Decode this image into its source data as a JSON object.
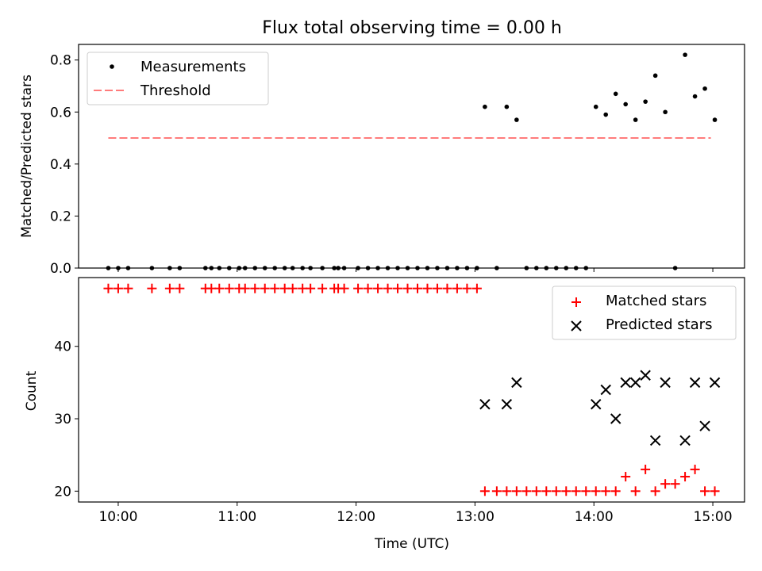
{
  "chart_data": [
    {
      "type": "scatter",
      "title": "Flux total observing time = 0.00 h",
      "xlabel": "",
      "ylabel": "Matched/Predicted stars",
      "xlim": [
        "09:40",
        "15:16"
      ],
      "ylim": [
        0,
        0.86
      ],
      "yticks": [
        "0.0",
        "0.2",
        "0.4",
        "0.6",
        "0.8"
      ],
      "legend_position": "upper-left",
      "series": [
        {
          "name": "Measurements",
          "style": "black dots",
          "points": [
            [
              "09:55",
              0
            ],
            [
              "10:00",
              0
            ],
            [
              "10:05",
              0
            ],
            [
              "10:17",
              0
            ],
            [
              "10:26",
              0
            ],
            [
              "10:31",
              0
            ],
            [
              "10:44",
              0
            ],
            [
              "10:47",
              0
            ],
            [
              "10:51",
              0
            ],
            [
              "10:56",
              0
            ],
            [
              "11:01",
              0
            ],
            [
              "11:04",
              0
            ],
            [
              "11:09",
              0
            ],
            [
              "11:14",
              0
            ],
            [
              "11:19",
              0
            ],
            [
              "11:24",
              0
            ],
            [
              "11:28",
              0
            ],
            [
              "11:33",
              0
            ],
            [
              "11:37",
              0
            ],
            [
              "11:43",
              0
            ],
            [
              "11:49",
              0
            ],
            [
              "11:51",
              0
            ],
            [
              "11:54",
              0
            ],
            [
              "12:01",
              0
            ],
            [
              "12:06",
              0
            ],
            [
              "12:11",
              0
            ],
            [
              "12:16",
              0
            ],
            [
              "12:21",
              0
            ],
            [
              "12:26",
              0
            ],
            [
              "12:31",
              0
            ],
            [
              "12:36",
              0
            ],
            [
              "12:41",
              0
            ],
            [
              "12:46",
              0
            ],
            [
              "12:51",
              0
            ],
            [
              "12:56",
              0
            ],
            [
              "13:01",
              0
            ],
            [
              "13:05",
              0.62
            ],
            [
              "13:11",
              0
            ],
            [
              "13:16",
              0.62
            ],
            [
              "13:21",
              0.57
            ],
            [
              "13:26",
              0
            ],
            [
              "13:31",
              0
            ],
            [
              "13:36",
              0
            ],
            [
              "13:41",
              0
            ],
            [
              "13:46",
              0
            ],
            [
              "13:51",
              0
            ],
            [
              "13:56",
              0
            ],
            [
              "14:01",
              0.62
            ],
            [
              "14:06",
              0.59
            ],
            [
              "14:11",
              0.67
            ],
            [
              "14:16",
              0.63
            ],
            [
              "14:21",
              0.57
            ],
            [
              "14:26",
              0.64
            ],
            [
              "14:31",
              0.74
            ],
            [
              "14:36",
              0.6
            ],
            [
              "14:41",
              0
            ],
            [
              "14:46",
              0.82
            ],
            [
              "14:51",
              0.66
            ],
            [
              "14:56",
              0.69
            ],
            [
              "15:01",
              0.57
            ]
          ]
        },
        {
          "name": "Threshold",
          "style": "dashed salmon line",
          "points": [
            [
              "09:55",
              0.5
            ],
            [
              "14:59",
              0.5
            ]
          ],
          "color": "#ff7b7b"
        }
      ]
    },
    {
      "type": "scatter",
      "title": "",
      "xlabel": "Time (UTC)",
      "ylabel": "Count",
      "xlim": [
        "09:40",
        "15:16"
      ],
      "ylim": [
        18.5,
        49.5
      ],
      "yticks": [
        "20",
        "30",
        "40"
      ],
      "xticks": [
        "10:00",
        "11:00",
        "12:00",
        "13:00",
        "14:00",
        "15:00"
      ],
      "legend_position": "upper-right",
      "series": [
        {
          "name": "Matched stars",
          "marker": "+",
          "color": "#ff0000",
          "points": [
            [
              "09:55",
              48
            ],
            [
              "10:00",
              48
            ],
            [
              "10:05",
              48
            ],
            [
              "10:17",
              48
            ],
            [
              "10:26",
              48
            ],
            [
              "10:31",
              48
            ],
            [
              "10:44",
              48
            ],
            [
              "10:47",
              48
            ],
            [
              "10:51",
              48
            ],
            [
              "10:56",
              48
            ],
            [
              "11:01",
              48
            ],
            [
              "11:04",
              48
            ],
            [
              "11:09",
              48
            ],
            [
              "11:14",
              48
            ],
            [
              "11:19",
              48
            ],
            [
              "11:24",
              48
            ],
            [
              "11:28",
              48
            ],
            [
              "11:33",
              48
            ],
            [
              "11:37",
              48
            ],
            [
              "11:43",
              48
            ],
            [
              "11:49",
              48
            ],
            [
              "11:51",
              48
            ],
            [
              "11:54",
              48
            ],
            [
              "12:01",
              48
            ],
            [
              "12:06",
              48
            ],
            [
              "12:11",
              48
            ],
            [
              "12:16",
              48
            ],
            [
              "12:21",
              48
            ],
            [
              "12:26",
              48
            ],
            [
              "12:31",
              48
            ],
            [
              "12:36",
              48
            ],
            [
              "12:41",
              48
            ],
            [
              "12:46",
              48
            ],
            [
              "12:51",
              48
            ],
            [
              "12:56",
              48
            ],
            [
              "13:01",
              48
            ],
            [
              "13:05",
              20
            ],
            [
              "13:11",
              20
            ],
            [
              "13:16",
              20
            ],
            [
              "13:21",
              20
            ],
            [
              "13:26",
              20
            ],
            [
              "13:31",
              20
            ],
            [
              "13:36",
              20
            ],
            [
              "13:41",
              20
            ],
            [
              "13:46",
              20
            ],
            [
              "13:51",
              20
            ],
            [
              "13:56",
              20
            ],
            [
              "14:01",
              20
            ],
            [
              "14:06",
              20
            ],
            [
              "14:11",
              20
            ],
            [
              "14:16",
              22
            ],
            [
              "14:21",
              20
            ],
            [
              "14:26",
              23
            ],
            [
              "14:31",
              20
            ],
            [
              "14:36",
              21
            ],
            [
              "14:41",
              21
            ],
            [
              "14:46",
              22
            ],
            [
              "14:51",
              23
            ],
            [
              "14:56",
              20
            ],
            [
              "15:01",
              20
            ]
          ]
        },
        {
          "name": "Predicted stars",
          "marker": "x",
          "color": "#000000",
          "points": [
            [
              "13:05",
              32
            ],
            [
              "13:16",
              32
            ],
            [
              "13:21",
              35
            ],
            [
              "14:01",
              32
            ],
            [
              "14:06",
              34
            ],
            [
              "14:11",
              30
            ],
            [
              "14:16",
              35
            ],
            [
              "14:21",
              35
            ],
            [
              "14:26",
              36
            ],
            [
              "14:31",
              27
            ],
            [
              "14:36",
              35
            ],
            [
              "14:46",
              27
            ],
            [
              "14:51",
              35
            ],
            [
              "14:56",
              29
            ],
            [
              "15:01",
              35
            ]
          ]
        }
      ]
    }
  ]
}
